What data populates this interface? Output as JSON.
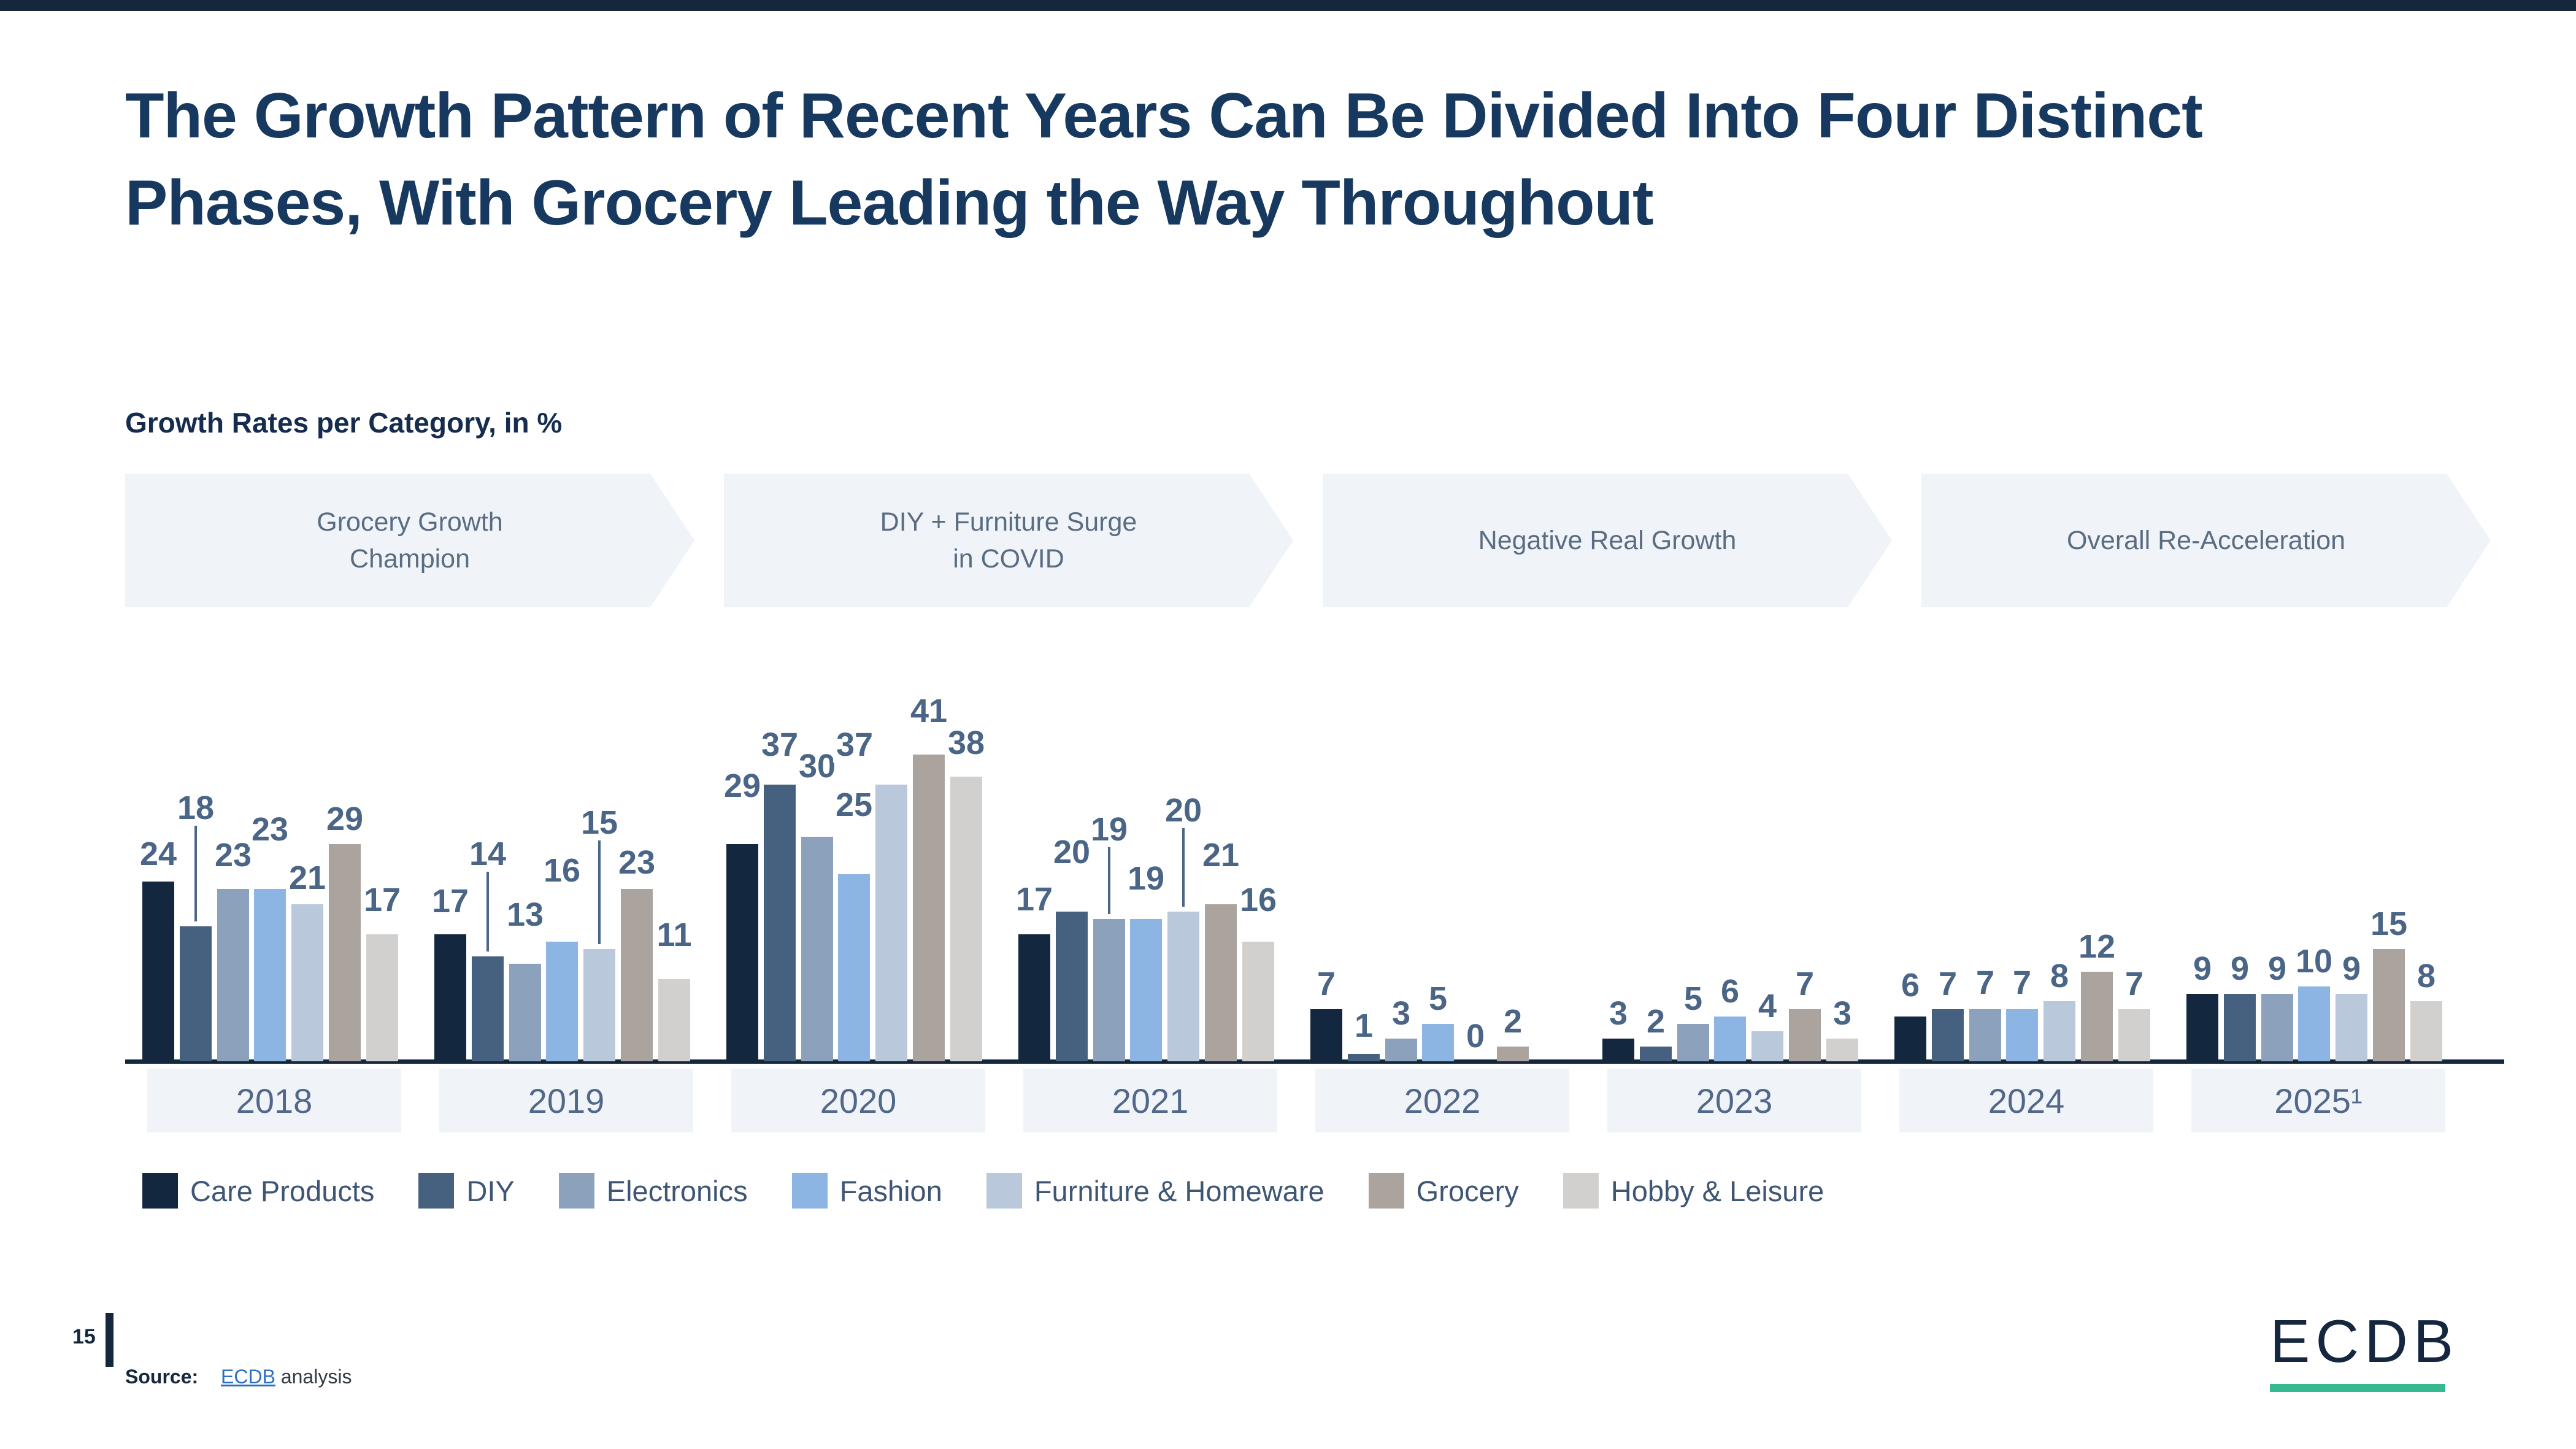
{
  "slide": {
    "title": "The Growth Pattern of Recent Years Can Be Divided Into Four Distinct Phases, With Grocery Leading the Way Throughout",
    "subtitle": "Growth Rates per Category, in %",
    "page_number": "15",
    "source_label": "Source:",
    "source_link_text": "ECDB",
    "source_suffix": "analysis",
    "logo_text": "ECDB",
    "accent_teal": "#36B993",
    "brand_navy": "#15273C"
  },
  "phases": [
    {
      "lines": [
        "Grocery Growth",
        "Champion"
      ]
    },
    {
      "lines": [
        "DIY + Furniture Surge",
        "in COVID"
      ]
    },
    {
      "lines": [
        "Negative Real Growth"
      ]
    },
    {
      "lines": [
        "Overall Re-Acceleration"
      ]
    }
  ],
  "chart_data": {
    "type": "bar",
    "title": "Growth Rates per Category, in %",
    "unit": "%",
    "categories": [
      "2018",
      "2019",
      "2020",
      "2021",
      "2022",
      "2023",
      "2024",
      "2025¹"
    ],
    "series": [
      {
        "name": "Care Products",
        "color": "#13283F",
        "values": [
          24,
          17,
          29,
          17,
          7,
          3,
          6,
          9
        ]
      },
      {
        "name": "DIY",
        "color": "#46617F",
        "values": [
          18,
          14,
          37,
          20,
          1,
          2,
          7,
          9
        ]
      },
      {
        "name": "Electronics",
        "color": "#8CA2BC",
        "values": [
          23,
          13,
          30,
          19,
          3,
          5,
          7,
          9
        ]
      },
      {
        "name": "Fashion",
        "color": "#8CB5E4",
        "values": [
          23,
          16,
          25,
          19,
          5,
          6,
          7,
          10
        ]
      },
      {
        "name": "Furniture & Homeware",
        "color": "#B9C8DA",
        "values": [
          21,
          15,
          37,
          20,
          0,
          4,
          8,
          9
        ]
      },
      {
        "name": "Grocery",
        "color": "#ABA49E",
        "values": [
          29,
          23,
          41,
          21,
          2,
          7,
          12,
          15
        ]
      },
      {
        "name": "Hobby & Leisure",
        "color": "#D2D0CE",
        "values": [
          17,
          11,
          38,
          16,
          null,
          3,
          7,
          8
        ]
      }
    ],
    "ylim": [
      0,
      41
    ],
    "grid": false,
    "axis_line": true,
    "legend_position": "bottom",
    "value_labels": true,
    "label_lifts": [
      [
        4,
        152,
        14,
        56,
        2,
        0,
        15
      ],
      [
        13,
        126,
        39,
        75,
        165,
        2,
        31
      ],
      [
        54,
        24,
        74,
        72,
        24,
        30,
        14
      ],
      [
        16,
        56,
        105,
        25,
        124,
        39,
        27
      ],
      [
        0,
        5,
        0,
        0,
        0,
        0,
        0
      ],
      [
        0,
        0,
        0,
        0,
        0,
        0,
        0
      ],
      [
        10,
        0,
        2,
        2,
        0,
        0,
        0
      ],
      [
        0,
        0,
        0,
        0,
        0,
        0,
        0
      ]
    ],
    "label_dx": {
      "2-4": -60
    },
    "callouts": [
      "0-1",
      "1-1",
      "1-4",
      "3-2",
      "3-4"
    ]
  }
}
